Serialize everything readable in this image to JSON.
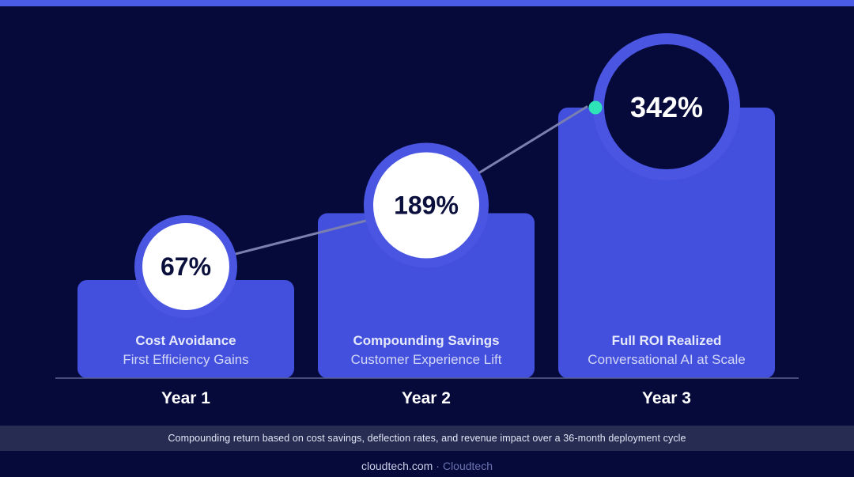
{
  "colors": {
    "background": "#050a3b",
    "top_bar": "#4a5be6",
    "bar": "#4350dd",
    "ring": "#4a56e2",
    "circle_fill": "#ffffff",
    "value_text": "#0a0f3c",
    "trend_line": "#7a7fb0",
    "accent_dot": "#2fe3b8",
    "baseline": "#5b6190",
    "caption_band": "#262c52"
  },
  "chart_data": {
    "type": "bar",
    "categories": [
      "Year 1",
      "Year 2",
      "Year 3"
    ],
    "values": [
      67,
      189,
      342
    ],
    "value_labels": [
      "67%",
      "189%",
      "342%"
    ],
    "bar_titles": [
      "Cost Avoidance",
      "Compounding Savings",
      "Full ROI Realized"
    ],
    "bar_subtitles": [
      "First Efficiency Gains",
      "Customer Experience Lift",
      "Conversational AI at Scale"
    ],
    "ylim": [
      0,
      342
    ],
    "trend_line": true,
    "grid": false,
    "legend": "none"
  },
  "caption": "Compounding return based on cost savings, deflection rates, and revenue impact over a 36-month deployment cycle",
  "footer": {
    "domain": "cloudtech.com",
    "separator": "·",
    "brand": "Cloudtech"
  }
}
